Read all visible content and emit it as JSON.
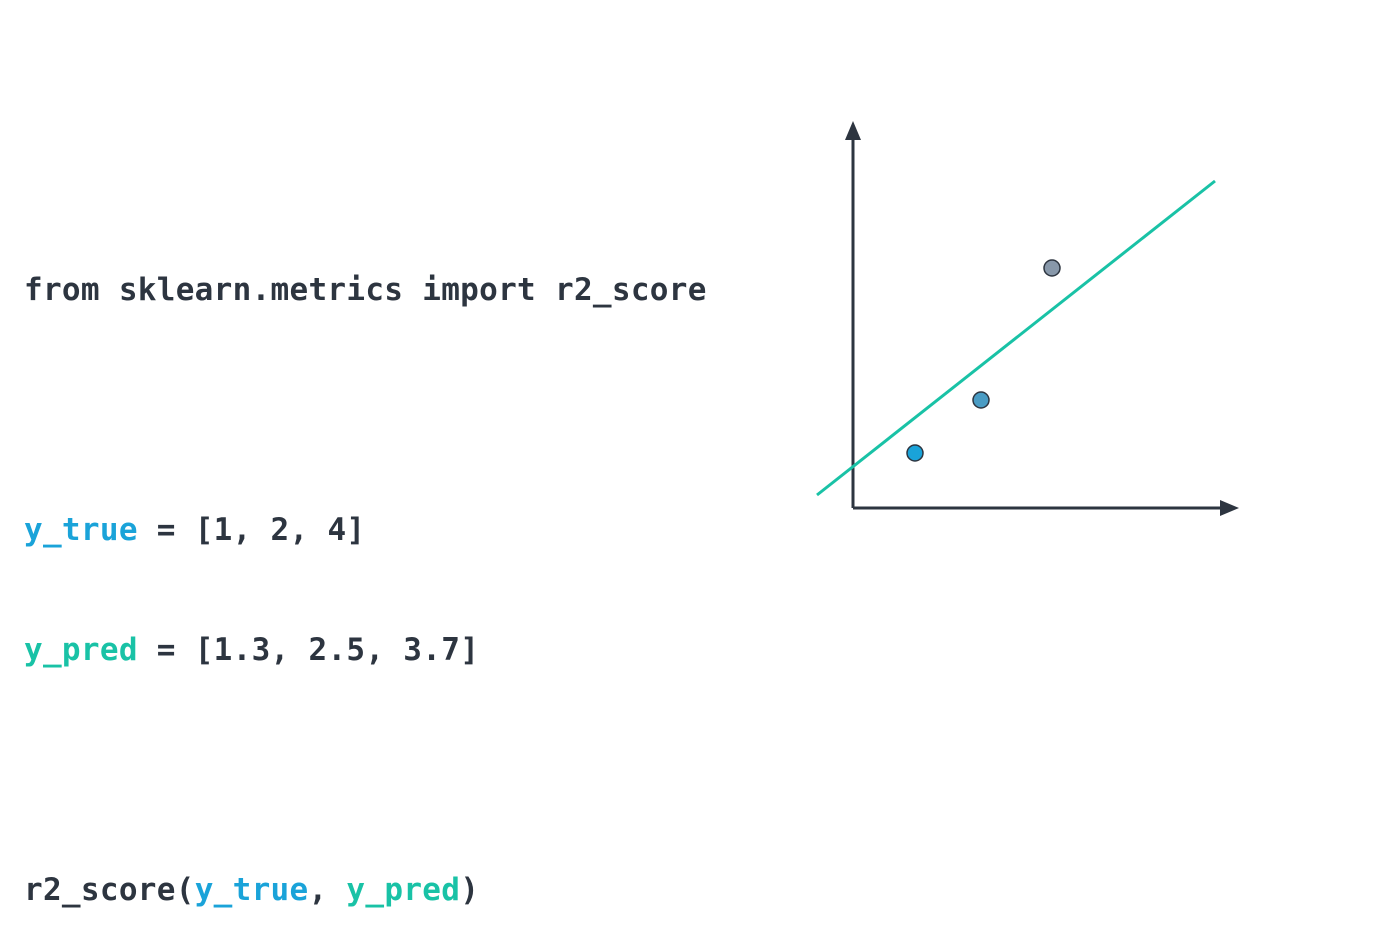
{
  "code": {
    "import_line": "from sklearn.metrics import r2_score",
    "y_true": {
      "name": "y_true",
      "assign": " = ",
      "value": "[1, 2, 4]"
    },
    "y_pred": {
      "name": "y_pred",
      "assign": " = ",
      "value": "[1.3, 2.5, 3.7]"
    },
    "call": {
      "func_open": "r2_score(",
      "arg1": "y_true",
      "sep": ", ",
      "arg2": "y_pred",
      "close": ")"
    }
  },
  "colors": {
    "code_text": "#2d3540",
    "y_true": "#1aa3d9",
    "y_pred": "#19c2a6",
    "axis": "#2d3540",
    "regression_line": "#19c2a6",
    "point_fills": [
      "#1aa3d9",
      "#4a9cc4",
      "#8898aa"
    ],
    "point_stroke": "#2d3540"
  },
  "diagram": {
    "type": "scatter-with-fit-line",
    "axes_labels": "none",
    "points_count": 3
  }
}
